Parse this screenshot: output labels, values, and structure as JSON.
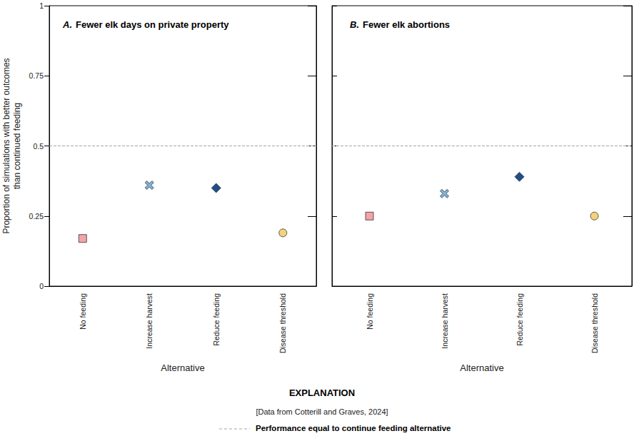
{
  "chart_data": [
    {
      "type": "scatter",
      "title": "A. Fewer elk days on private property",
      "xlabel": "Alternative",
      "ylabel": "Proportion of simulations with better outcomes\nthan continued feeding",
      "categories": [
        "No feeding",
        "Increase harvest",
        "Reduce feeding",
        "Disease threshold"
      ],
      "series": [
        {
          "name": "No feeding",
          "color": "#f4a3a8",
          "marker": "square",
          "values": [
            0.17,
            null,
            null,
            null
          ]
        },
        {
          "name": "Increase harvest",
          "color": "#7fb4dc",
          "marker": "x",
          "values": [
            null,
            0.36,
            null,
            null
          ]
        },
        {
          "name": "Reduce feeding",
          "color": "#1f4e8c",
          "marker": "diamond",
          "values": [
            null,
            null,
            0.35,
            null
          ]
        },
        {
          "name": "Disease threshold",
          "color": "#f3d27a",
          "marker": "circle",
          "values": [
            null,
            null,
            null,
            0.19
          ]
        }
      ],
      "ylim": [
        0,
        1
      ],
      "yticks": [
        0,
        0.25,
        0.5,
        0.75,
        1
      ],
      "tick_labels": true,
      "grid": false,
      "reference_line": {
        "value": 0.5,
        "line_style": "dashed",
        "color": "#a6a6a6"
      }
    },
    {
      "type": "scatter",
      "title": "B. Fewer elk abortions",
      "xlabel": "Alternative",
      "categories": [
        "No feeding",
        "Increase harvest",
        "Reduce feeding",
        "Disease threshold"
      ],
      "series": [
        {
          "name": "No feeding",
          "color": "#f4a3a8",
          "marker": "square",
          "values": [
            0.25,
            null,
            null,
            null
          ]
        },
        {
          "name": "Increase harvest",
          "color": "#7fb4dc",
          "marker": "x",
          "values": [
            null,
            0.33,
            null,
            null
          ]
        },
        {
          "name": "Reduce feeding",
          "color": "#1f4e8c",
          "marker": "diamond",
          "values": [
            null,
            null,
            0.39,
            null
          ]
        },
        {
          "name": "Disease threshold",
          "color": "#f3d27a",
          "marker": "circle",
          "values": [
            null,
            null,
            null,
            0.25
          ]
        }
      ],
      "ylim": [
        0,
        1
      ],
      "yticks": [
        0,
        0.25,
        0.5,
        0.75,
        1
      ],
      "tick_labels": "x",
      "grid": false,
      "reference_line": {
        "value": 0.5,
        "line_style": "dashed",
        "color": "#a6a6a6"
      }
    }
  ],
  "explanation": {
    "title": "EXPLANATION",
    "note": "[Data from Cotterill and Graves, 2024]",
    "reference_line_label": "Performance equal to continue feeding alternative"
  }
}
